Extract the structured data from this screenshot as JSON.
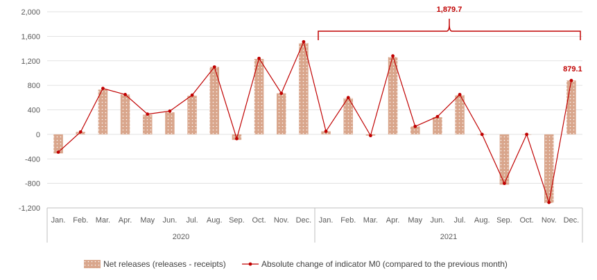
{
  "chart_data": {
    "type": "bar+line",
    "title": "",
    "xlabel": "",
    "ylabel": "",
    "ylim": [
      -1200,
      2000
    ],
    "yticks": [
      -1200,
      -800,
      -400,
      0,
      400,
      800,
      1200,
      1600,
      2000
    ],
    "ytick_labels": [
      "-1,200",
      "-800",
      "-400",
      "0",
      "400",
      "800",
      "1,200",
      "1,600",
      "2,000"
    ],
    "grid": "horizontal",
    "legend_position": "bottom",
    "categories": [
      "Jan.",
      "Feb.",
      "Mar.",
      "Apr.",
      "May",
      "Jun.",
      "Jul.",
      "Aug.",
      "Sep.",
      "Oct.",
      "Nov.",
      "Dec.",
      "Jan.",
      "Feb.",
      "Mar.",
      "Apr.",
      "May",
      "Jun.",
      "Jul.",
      "Aug.",
      "Sep.",
      "Oct.",
      "Nov.",
      "Dec."
    ],
    "groups": [
      {
        "label": "2020",
        "count": 12
      },
      {
        "label": "2021",
        "count": 12
      }
    ],
    "series": [
      {
        "name": "Net releases (releases - receipts)",
        "type": "bar",
        "color": "#d9a68c",
        "values": [
          -310,
          40,
          730,
          650,
          320,
          360,
          630,
          1100,
          -90,
          1230,
          670,
          1490,
          50,
          590,
          -20,
          1260,
          130,
          280,
          640,
          0,
          -820,
          0,
          -1120,
          879.1
        ]
      },
      {
        "name": "Absolute change of indicator M0 (compared to the previous month)",
        "type": "line",
        "color": "#c00000",
        "values": [
          -290,
          40,
          750,
          650,
          330,
          380,
          640,
          1100,
          -70,
          1240,
          670,
          1510,
          50,
          600,
          -20,
          1280,
          130,
          290,
          650,
          0,
          -800,
          0,
          -1110,
          879.1
        ]
      }
    ],
    "annotations": [
      {
        "text": "1,879.7",
        "type": "brace",
        "from_category": 12,
        "to_category": 23
      },
      {
        "text": "879.1",
        "type": "point-label",
        "category": 23
      }
    ]
  }
}
